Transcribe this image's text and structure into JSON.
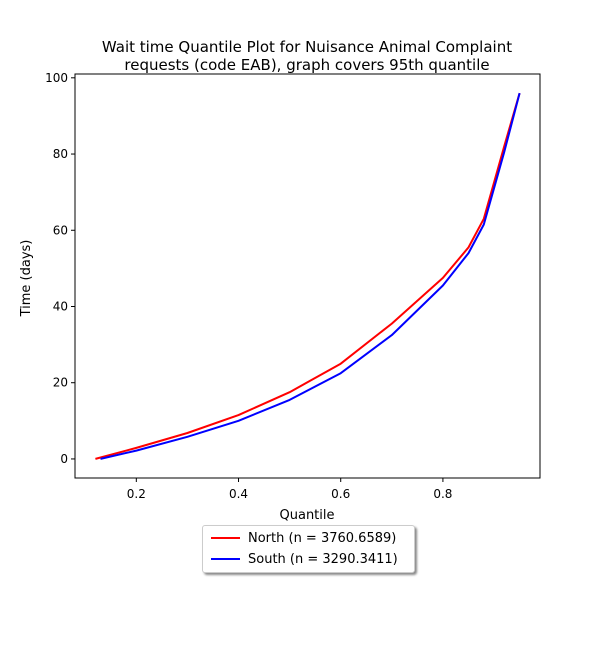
{
  "chart_data": {
    "type": "line",
    "title": "Wait time Quantile Plot for Nuisance Animal Complaint requests (code EAB), graph covers 95th quantile",
    "title_lines": [
      "Wait time Quantile Plot for Nuisance Animal Complaint",
      "requests (code EAB), graph covers 95th quantile"
    ],
    "xlabel": "Quantile",
    "ylabel": "Time (days)",
    "xlim": [
      0.08,
      0.99
    ],
    "ylim": [
      -5,
      101
    ],
    "xticks": [
      "0.2",
      "0.4",
      "0.6",
      "0.8"
    ],
    "yticks": [
      "0",
      "20",
      "40",
      "60",
      "80",
      "100"
    ],
    "grid": false,
    "legend_placement": "bottom-center",
    "series": [
      {
        "name": "North (n = 3760.6589)",
        "color": "#ff0000",
        "points": [
          [
            0.12,
            0
          ],
          [
            0.2,
            2.9
          ],
          [
            0.3,
            6.8
          ],
          [
            0.4,
            11.5
          ],
          [
            0.5,
            17.5
          ],
          [
            0.6,
            25
          ],
          [
            0.7,
            35.5
          ],
          [
            0.8,
            47.5
          ],
          [
            0.85,
            55.5
          ],
          [
            0.88,
            63
          ],
          [
            0.9,
            72.5
          ],
          [
            0.92,
            82
          ],
          [
            0.95,
            96
          ]
        ]
      },
      {
        "name": "South (n = 3290.3411)",
        "color": "#0000ff",
        "points": [
          [
            0.13,
            0
          ],
          [
            0.2,
            2.2
          ],
          [
            0.3,
            5.8
          ],
          [
            0.4,
            10
          ],
          [
            0.5,
            15.5
          ],
          [
            0.6,
            22.5
          ],
          [
            0.7,
            32.5
          ],
          [
            0.8,
            45.5
          ],
          [
            0.85,
            54
          ],
          [
            0.88,
            61.5
          ],
          [
            0.9,
            71
          ],
          [
            0.92,
            80.5
          ],
          [
            0.95,
            96
          ]
        ]
      }
    ]
  }
}
